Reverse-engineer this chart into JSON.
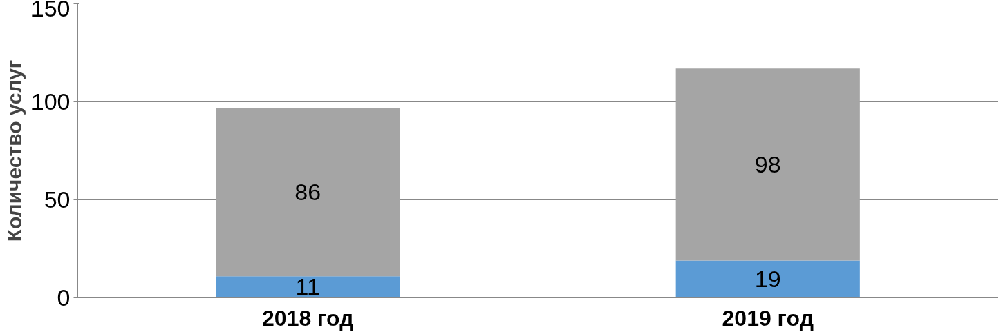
{
  "chart_data": {
    "type": "bar",
    "stacked": true,
    "ylabel": "Количество услуг",
    "categories": [
      "2018 год",
      "2019 год"
    ],
    "series": [
      {
        "color": "#5b9bd5",
        "values": [
          11,
          19
        ]
      },
      {
        "color": "#a5a5a5",
        "values": [
          86,
          98
        ]
      }
    ],
    "ylim": [
      0,
      150
    ],
    "yticks": [
      0,
      50,
      100,
      150
    ],
    "grid": "y",
    "data_labels": true
  }
}
